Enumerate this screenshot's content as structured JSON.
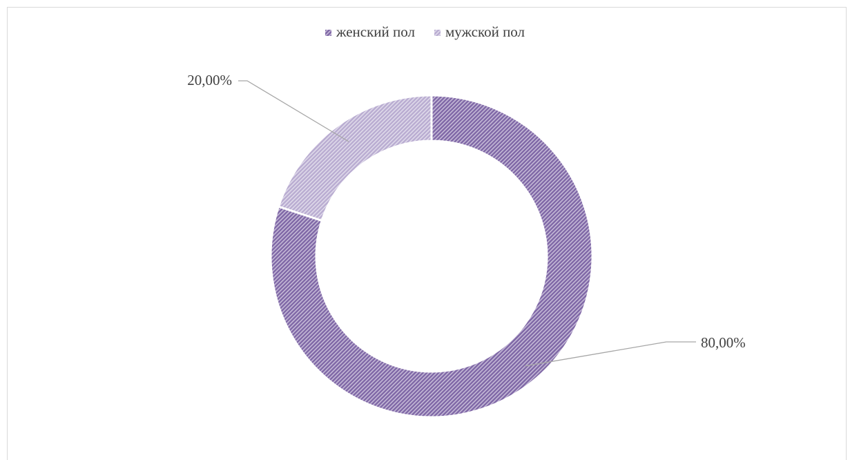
{
  "chart_data": {
    "type": "donut",
    "categories": [
      "женский пол",
      "мужской пол"
    ],
    "values": [
      80,
      20
    ],
    "value_labels": [
      "80,00%",
      "20,00%"
    ],
    "colors": [
      "#7f67a6",
      "#b9acd1"
    ],
    "legend": "top"
  }
}
